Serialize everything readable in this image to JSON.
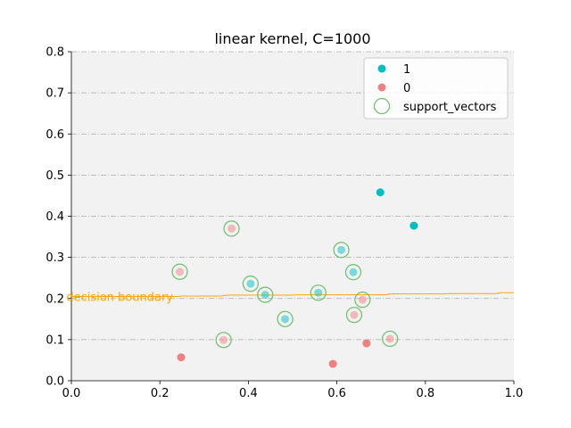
{
  "chart_data": {
    "type": "scatter",
    "title": "linear kernel, C=1000",
    "xlim": [
      0.0,
      1.0
    ],
    "ylim": [
      0.0,
      0.8
    ],
    "xticks": [
      "0.0",
      "0.2",
      "0.4",
      "0.6",
      "0.8",
      "1.0"
    ],
    "yticks": [
      "0.0",
      "0.1",
      "0.2",
      "0.3",
      "0.4",
      "0.5",
      "0.6",
      "0.7",
      "0.8"
    ],
    "grid": true,
    "legend_position": "top-right",
    "colors": {
      "class_1": "#00bfc4",
      "class_0": "#f08080",
      "support_vectors": "#6abf69",
      "boundary": "#ffa500",
      "plot_background": "#f2f2f2",
      "grid": "#aaaaaa"
    },
    "series": [
      {
        "name": "1",
        "points": [
          {
            "x": 0.698,
            "y": 0.458,
            "faded": false
          },
          {
            "x": 0.774,
            "y": 0.377,
            "faded": false
          },
          {
            "x": 0.61,
            "y": 0.318,
            "faded": true
          },
          {
            "x": 0.637,
            "y": 0.264,
            "faded": true
          },
          {
            "x": 0.405,
            "y": 0.236,
            "faded": true
          },
          {
            "x": 0.438,
            "y": 0.209,
            "faded": true
          },
          {
            "x": 0.558,
            "y": 0.214,
            "faded": true
          },
          {
            "x": 0.483,
            "y": 0.15,
            "faded": true
          }
        ]
      },
      {
        "name": "0",
        "points": [
          {
            "x": 0.362,
            "y": 0.37,
            "faded": true
          },
          {
            "x": 0.245,
            "y": 0.265,
            "faded": true
          },
          {
            "x": 0.658,
            "y": 0.197,
            "faded": true
          },
          {
            "x": 0.639,
            "y": 0.16,
            "faded": true
          },
          {
            "x": 0.344,
            "y": 0.099,
            "faded": true
          },
          {
            "x": 0.72,
            "y": 0.102,
            "faded": true
          },
          {
            "x": 0.667,
            "y": 0.091,
            "faded": false
          },
          {
            "x": 0.248,
            "y": 0.057,
            "faded": false
          },
          {
            "x": 0.591,
            "y": 0.041,
            "faded": false
          }
        ]
      }
    ],
    "support_vectors": {
      "name": "support_vectors",
      "points": [
        {
          "x": 0.61,
          "y": 0.318
        },
        {
          "x": 0.637,
          "y": 0.264
        },
        {
          "x": 0.405,
          "y": 0.236
        },
        {
          "x": 0.438,
          "y": 0.209
        },
        {
          "x": 0.558,
          "y": 0.214
        },
        {
          "x": 0.483,
          "y": 0.15
        },
        {
          "x": 0.362,
          "y": 0.37
        },
        {
          "x": 0.245,
          "y": 0.265
        },
        {
          "x": 0.658,
          "y": 0.197
        },
        {
          "x": 0.639,
          "y": 0.16
        },
        {
          "x": 0.344,
          "y": 0.099
        },
        {
          "x": 0.72,
          "y": 0.102
        }
      ]
    },
    "decision_boundary": {
      "label": "decision boundary",
      "x": [
        0.0,
        0.24,
        0.25,
        0.34,
        0.35,
        0.5,
        0.51,
        0.71,
        0.72,
        0.84,
        0.85,
        0.96,
        0.97,
        1.0
      ],
      "y": [
        0.205,
        0.205,
        0.206,
        0.206,
        0.208,
        0.208,
        0.209,
        0.209,
        0.211,
        0.211,
        0.212,
        0.212,
        0.214,
        0.214
      ]
    }
  }
}
